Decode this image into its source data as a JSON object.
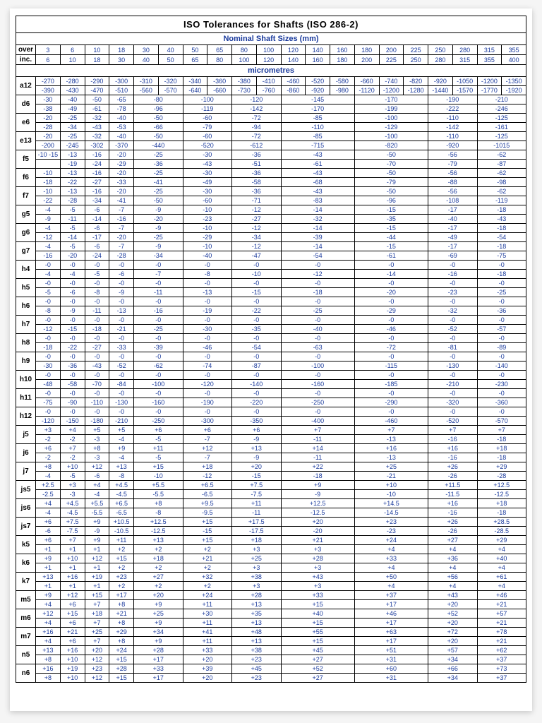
{
  "title": "ISO Tolerances for Shafts (ISO 286-2)",
  "nominal_header": "Nominal Shaft Sizes (mm)",
  "micrometres": "micrometres",
  "rowLabels": {
    "over": "over",
    "inc": "inc."
  },
  "overSizes": [
    "3",
    "6",
    "10",
    "18",
    "30",
    "40",
    "50",
    "65",
    "80",
    "100",
    "120",
    "140",
    "160",
    "180",
    "200",
    "225",
    "250",
    "280",
    "315",
    "355"
  ],
  "incSizes": [
    "6",
    "10",
    "18",
    "30",
    "40",
    "50",
    "65",
    "80",
    "100",
    "120",
    "140",
    "160",
    "180",
    "200",
    "225",
    "250",
    "280",
    "315",
    "355",
    "400"
  ],
  "colors": {
    "accent": "#1a3a9c"
  },
  "rows": [
    {
      "c": "a12",
      "spans": [
        1,
        1,
        1,
        1,
        1,
        1,
        1,
        1,
        1,
        1,
        1,
        1,
        1,
        1,
        1,
        1,
        1,
        1,
        1,
        1
      ],
      "u": [
        "-270",
        "-280",
        "-290",
        "-300",
        "-310",
        "-320",
        "-340",
        "-360",
        "-380",
        "-410",
        "-460",
        "-520",
        "-580",
        "-660",
        "-740",
        "-820",
        "-920",
        "-1050",
        "-1200",
        "-1350"
      ],
      "l": [
        "-390",
        "-430",
        "-470",
        "-510",
        "-560",
        "-570",
        "-640",
        "-660",
        "-730",
        "-760",
        "-860",
        "-920",
        "-980",
        "-1120",
        "-1200",
        "-1280",
        "-1440",
        "-1570",
        "-1770",
        "-1920"
      ]
    },
    {
      "c": "d6",
      "spans": [
        1,
        1,
        1,
        1,
        2,
        2,
        2,
        3,
        3,
        2,
        2
      ],
      "u": [
        "-30",
        "-40",
        "-50",
        "-65",
        "-80",
        "-100",
        "-120",
        "-145",
        "-170",
        "-190",
        "-210"
      ],
      "l": [
        "-38",
        "-49",
        "-61",
        "-78",
        "-96",
        "-119",
        "-142",
        "-170",
        "-199",
        "-222",
        "-246"
      ]
    },
    {
      "c": "e6",
      "spans": [
        1,
        1,
        1,
        1,
        2,
        2,
        2,
        3,
        3,
        2,
        2
      ],
      "u": [
        "-20",
        "-25",
        "-32",
        "-40",
        "-50",
        "-60",
        "-72",
        "-85",
        "-100",
        "-110",
        "-125"
      ],
      "l": [
        "-28",
        "-34",
        "-43",
        "-53",
        "-66",
        "-79",
        "-94",
        "-110",
        "-129",
        "-142",
        "-161"
      ]
    },
    {
      "c": "e13",
      "spans": [
        1,
        1,
        1,
        1,
        2,
        2,
        2,
        3,
        3,
        2,
        2
      ],
      "u": [
        "-20",
        "-25",
        "-32",
        "-40",
        "-50",
        "-60",
        "-72",
        "-85",
        "-100",
        "-110",
        "-125"
      ],
      "l": [
        "-200",
        "-245",
        "-302",
        "-370",
        "-440",
        "-520",
        "-612",
        "-715",
        "-820",
        "-920",
        "-1015"
      ]
    },
    {
      "c": "f5",
      "spans": [
        1,
        1,
        1,
        1,
        2,
        2,
        2,
        3,
        3,
        2,
        2
      ],
      "u": [
        "-10 -15",
        "-13",
        "-16",
        "-20",
        "-25",
        "-30",
        "-36",
        "-43",
        "-50",
        "-56",
        "-62"
      ],
      "l": [
        "",
        "-19",
        "-24",
        "-29",
        "-36",
        "-43",
        "-51",
        "-61",
        "-70",
        "-79",
        "-87"
      ]
    },
    {
      "c": "f6",
      "spans": [
        1,
        1,
        1,
        1,
        2,
        2,
        2,
        3,
        3,
        2,
        2
      ],
      "u": [
        "-10",
        "-13",
        "-16",
        "-20",
        "-25",
        "-30",
        "-36",
        "-43",
        "-50",
        "-56",
        "-62"
      ],
      "l": [
        "-18",
        "-22",
        "-27",
        "-33",
        "-41",
        "-49",
        "-58",
        "-68",
        "-79",
        "-88",
        "-98"
      ]
    },
    {
      "c": "f7",
      "spans": [
        1,
        1,
        1,
        1,
        2,
        2,
        2,
        3,
        3,
        2,
        2
      ],
      "u": [
        "-10",
        "-13",
        "-16",
        "-20",
        "-25",
        "-30",
        "-36",
        "-43",
        "-50",
        "-56",
        "-62"
      ],
      "l": [
        "-22",
        "-28",
        "-34",
        "-41",
        "-50",
        "-60",
        "-71",
        "-83",
        "-96",
        "-108",
        "-119"
      ]
    },
    {
      "c": "g5",
      "spans": [
        1,
        1,
        1,
        1,
        2,
        2,
        2,
        3,
        3,
        2,
        2
      ],
      "u": [
        "-4",
        "-5",
        "-6",
        "-7",
        "-9",
        "-10",
        "-12",
        "-14",
        "-15",
        "-17",
        "-18"
      ],
      "l": [
        "-9",
        "-11",
        "-14",
        "-16",
        "-20",
        "-23",
        "-27",
        "-32",
        "-35",
        "-40",
        "-43"
      ]
    },
    {
      "c": "g6",
      "spans": [
        1,
        1,
        1,
        1,
        2,
        2,
        2,
        3,
        3,
        2,
        2
      ],
      "u": [
        "-4",
        "-5",
        "-6",
        "-7",
        "-9",
        "-10",
        "-12",
        "-14",
        "-15",
        "-17",
        "-18"
      ],
      "l": [
        "-12",
        "-14",
        "-17",
        "-20",
        "-25",
        "-29",
        "-34",
        "-39",
        "-44",
        "-49",
        "-54"
      ]
    },
    {
      "c": "g7",
      "spans": [
        1,
        1,
        1,
        1,
        2,
        2,
        2,
        3,
        3,
        2,
        2
      ],
      "u": [
        "-4",
        "-5",
        "-6",
        "-7",
        "-9",
        "-10",
        "-12",
        "-14",
        "-15",
        "-17",
        "-18"
      ],
      "l": [
        "-16",
        "-20",
        "-24",
        "-28",
        "-34",
        "-40",
        "-47",
        "-54",
        "-61",
        "-69",
        "-75"
      ]
    },
    {
      "c": "h4",
      "spans": [
        1,
        1,
        1,
        1,
        2,
        2,
        2,
        3,
        3,
        2,
        2
      ],
      "u": [
        "-0",
        "-0",
        "-0",
        "-0",
        "-0",
        "-0",
        "-0",
        "-0",
        "-0",
        "-0",
        "-0"
      ],
      "l": [
        "-4",
        "-4",
        "-5",
        "-6",
        "-7",
        "-8",
        "-10",
        "-12",
        "-14",
        "-16",
        "-18"
      ]
    },
    {
      "c": "h5",
      "spans": [
        1,
        1,
        1,
        1,
        2,
        2,
        2,
        3,
        3,
        2,
        2
      ],
      "u": [
        "-0",
        "-0",
        "-0",
        "-0",
        "-0",
        "-0",
        "-0",
        "-0",
        "-0",
        "-0",
        "-0"
      ],
      "l": [
        "-5",
        "-6",
        "-8",
        "-9",
        "-11",
        "-13",
        "-15",
        "-18",
        "-20",
        "-23",
        "-25"
      ]
    },
    {
      "c": "h6",
      "spans": [
        1,
        1,
        1,
        1,
        2,
        2,
        2,
        3,
        3,
        2,
        2
      ],
      "u": [
        "-0",
        "-0",
        "-0",
        "-0",
        "-0",
        "-0",
        "-0",
        "-0",
        "-0",
        "-0",
        "-0"
      ],
      "l": [
        "-8",
        "-9",
        "-11",
        "-13",
        "-16",
        "-19",
        "-22",
        "-25",
        "-29",
        "-32",
        "-36"
      ]
    },
    {
      "c": "h7",
      "spans": [
        1,
        1,
        1,
        1,
        2,
        2,
        2,
        3,
        3,
        2,
        2
      ],
      "u": [
        "-0",
        "-0",
        "-0",
        "-0",
        "-0",
        "-0",
        "-0",
        "-0",
        "-0",
        "-0",
        "-0"
      ],
      "l": [
        "-12",
        "-15",
        "-18",
        "-21",
        "-25",
        "-30",
        "-35",
        "-40",
        "-46",
        "-52",
        "-57"
      ]
    },
    {
      "c": "h8",
      "spans": [
        1,
        1,
        1,
        1,
        2,
        2,
        2,
        3,
        3,
        2,
        2
      ],
      "u": [
        "-0",
        "-0",
        "-0",
        "-0",
        "-0",
        "-0",
        "-0",
        "-0",
        "-0",
        "-0",
        "-0"
      ],
      "l": [
        "-18",
        "-22",
        "-27",
        "-33",
        "-39",
        "-46",
        "-54",
        "-63",
        "-72",
        "-81",
        "-89"
      ]
    },
    {
      "c": "h9",
      "spans": [
        1,
        1,
        1,
        1,
        2,
        2,
        2,
        3,
        3,
        2,
        2
      ],
      "u": [
        "-0",
        "-0",
        "-0",
        "-0",
        "-0",
        "-0",
        "-0",
        "-0",
        "-0",
        "-0",
        "-0"
      ],
      "l": [
        "-30",
        "-36",
        "-43",
        "-52",
        "-62",
        "-74",
        "-87",
        "-100",
        "-115",
        "-130",
        "-140"
      ]
    },
    {
      "c": "h10",
      "spans": [
        1,
        1,
        1,
        1,
        2,
        2,
        2,
        3,
        3,
        2,
        2
      ],
      "u": [
        "-0",
        "-0",
        "-0",
        "-0",
        "-0",
        "-0",
        "-0",
        "-0",
        "-0",
        "-0",
        "-0"
      ],
      "l": [
        "-48",
        "-58",
        "-70",
        "-84",
        "-100",
        "-120",
        "-140",
        "-160",
        "-185",
        "-210",
        "-230"
      ]
    },
    {
      "c": "h11",
      "spans": [
        1,
        1,
        1,
        1,
        2,
        2,
        2,
        3,
        3,
        2,
        2
      ],
      "u": [
        "-0",
        "-0",
        "-0",
        "-0",
        "-0",
        "-0",
        "-0",
        "-0",
        "-0",
        "-0",
        "-0"
      ],
      "l": [
        "-75",
        "-90",
        "-110",
        "-130",
        "-160",
        "-190",
        "-220",
        "-250",
        "-290",
        "-320",
        "-360"
      ]
    },
    {
      "c": "h12",
      "spans": [
        1,
        1,
        1,
        1,
        2,
        2,
        2,
        3,
        3,
        2,
        2
      ],
      "u": [
        "-0",
        "-0",
        "-0",
        "-0",
        "-0",
        "-0",
        "-0",
        "-0",
        "-0",
        "-0",
        "-0"
      ],
      "l": [
        "-120",
        "-150",
        "-180",
        "-210",
        "-250",
        "-300",
        "-350",
        "-400",
        "-460",
        "-520",
        "-570"
      ]
    },
    {
      "c": "j5",
      "spans": [
        1,
        1,
        1,
        1,
        2,
        2,
        2,
        3,
        3,
        2,
        2
      ],
      "u": [
        "+3",
        "+4",
        "+5",
        "+5",
        "+6",
        "+6",
        "+6",
        "+7",
        "+7",
        "+7",
        "+7"
      ],
      "l": [
        "-2",
        "-2",
        "-3",
        "-4",
        "-5",
        "-7",
        "-9",
        "-11",
        "-13",
        "-16",
        "-18"
      ]
    },
    {
      "c": "j6",
      "spans": [
        1,
        1,
        1,
        1,
        2,
        2,
        2,
        3,
        3,
        2,
        2
      ],
      "u": [
        "+6",
        "+7",
        "+8",
        "+9",
        "+11",
        "+12",
        "+13",
        "+14",
        "+16",
        "+16",
        "+18"
      ],
      "l": [
        "-2",
        "-2",
        "-3",
        "-4",
        "-5",
        "-7",
        "-9",
        "-11",
        "-13",
        "-16",
        "-18"
      ]
    },
    {
      "c": "j7",
      "spans": [
        1,
        1,
        1,
        1,
        2,
        2,
        2,
        3,
        3,
        2,
        2
      ],
      "u": [
        "+8",
        "+10",
        "+12",
        "+13",
        "+15",
        "+18",
        "+20",
        "+22",
        "+25",
        "+26",
        "+29"
      ],
      "l": [
        "-4",
        "-5",
        "-6",
        "-8",
        "-10",
        "-12",
        "-15",
        "-18",
        "-21",
        "-26",
        "-28"
      ]
    },
    {
      "c": "js5",
      "spans": [
        1,
        1,
        1,
        1,
        2,
        2,
        2,
        3,
        3,
        2,
        2
      ],
      "u": [
        "+2.5",
        "+3",
        "+4",
        "+4.5",
        "+5.5",
        "+6.5",
        "+7.5",
        "+9",
        "+10",
        "+11.5",
        "+12.5"
      ],
      "l": [
        "-2.5",
        "-3",
        "-4",
        "-4.5",
        "-5.5",
        "-6.5",
        "-7.5",
        "-9",
        "-10",
        "-11.5",
        "-12.5"
      ]
    },
    {
      "c": "js6",
      "spans": [
        1,
        1,
        1,
        1,
        2,
        2,
        2,
        3,
        3,
        2,
        2
      ],
      "u": [
        "+4",
        "+4.5",
        "+5.5",
        "+6.5",
        "+8",
        "+9.5",
        "+11",
        "+12.5",
        "+14.5",
        "+16",
        "+18"
      ],
      "l": [
        "-4",
        "-4.5",
        "-5.5",
        "-6.5",
        "-8",
        "-9.5",
        "-11",
        "-12.5",
        "-14.5",
        "-16",
        "-18"
      ]
    },
    {
      "c": "js7",
      "spans": [
        1,
        1,
        1,
        1,
        2,
        2,
        2,
        3,
        3,
        2,
        2
      ],
      "u": [
        "+6",
        "+7.5",
        "+9",
        "+10.5",
        "+12.5",
        "+15",
        "+17.5",
        "+20",
        "+23",
        "+26",
        "+28.5"
      ],
      "l": [
        "-6",
        "-7.5",
        "-9",
        "-10.5",
        "-12.5",
        "-15",
        "-17.5",
        "-20",
        "-23",
        "-26",
        "-28.5"
      ]
    },
    {
      "c": "k5",
      "spans": [
        1,
        1,
        1,
        1,
        2,
        2,
        2,
        3,
        3,
        2,
        2
      ],
      "u": [
        "+6",
        "+7",
        "+9",
        "+11",
        "+13",
        "+15",
        "+18",
        "+21",
        "+24",
        "+27",
        "+29"
      ],
      "l": [
        "+1",
        "+1",
        "+1",
        "+2",
        "+2",
        "+2",
        "+3",
        "+3",
        "+4",
        "+4",
        "+4"
      ]
    },
    {
      "c": "k6",
      "spans": [
        1,
        1,
        1,
        1,
        2,
        2,
        2,
        3,
        3,
        2,
        2
      ],
      "u": [
        "+9",
        "+10",
        "+12",
        "+15",
        "+18",
        "+21",
        "+25",
        "+28",
        "+33",
        "+36",
        "+40"
      ],
      "l": [
        "+1",
        "+1",
        "+1",
        "+2",
        "+2",
        "+2",
        "+3",
        "+3",
        "+4",
        "+4",
        "+4"
      ]
    },
    {
      "c": "k7",
      "spans": [
        1,
        1,
        1,
        1,
        2,
        2,
        2,
        3,
        3,
        2,
        2
      ],
      "u": [
        "+13",
        "+16",
        "+19",
        "+23",
        "+27",
        "+32",
        "+38",
        "+43",
        "+50",
        "+56",
        "+61"
      ],
      "l": [
        "+1",
        "+1",
        "+1",
        "+2",
        "+2",
        "+2",
        "+3",
        "+3",
        "+4",
        "+4",
        "+4"
      ]
    },
    {
      "c": "m5",
      "spans": [
        1,
        1,
        1,
        1,
        2,
        2,
        2,
        3,
        3,
        2,
        2
      ],
      "u": [
        "+9",
        "+12",
        "+15",
        "+17",
        "+20",
        "+24",
        "+28",
        "+33",
        "+37",
        "+43",
        "+46"
      ],
      "l": [
        "+4",
        "+6",
        "+7",
        "+8",
        "+9",
        "+11",
        "+13",
        "+15",
        "+17",
        "+20",
        "+21"
      ]
    },
    {
      "c": "m6",
      "spans": [
        1,
        1,
        1,
        1,
        2,
        2,
        2,
        3,
        3,
        2,
        2
      ],
      "u": [
        "+12",
        "+15",
        "+18",
        "+21",
        "+25",
        "+30",
        "+35",
        "+40",
        "+46",
        "+52",
        "+57"
      ],
      "l": [
        "+4",
        "+6",
        "+7",
        "+8",
        "+9",
        "+11",
        "+13",
        "+15",
        "+17",
        "+20",
        "+21"
      ]
    },
    {
      "c": "m7",
      "spans": [
        1,
        1,
        1,
        1,
        2,
        2,
        2,
        3,
        3,
        2,
        2
      ],
      "u": [
        "+16",
        "+21",
        "+25",
        "+29",
        "+34",
        "+41",
        "+48",
        "+55",
        "+63",
        "+72",
        "+78"
      ],
      "l": [
        "+4",
        "+6",
        "+7",
        "+8",
        "+9",
        "+11",
        "+13",
        "+15",
        "+17",
        "+20",
        "+21"
      ]
    },
    {
      "c": "n5",
      "spans": [
        1,
        1,
        1,
        1,
        2,
        2,
        2,
        3,
        3,
        2,
        2
      ],
      "u": [
        "+13",
        "+16",
        "+20",
        "+24",
        "+28",
        "+33",
        "+38",
        "+45",
        "+51",
        "+57",
        "+62"
      ],
      "l": [
        "+8",
        "+10",
        "+12",
        "+15",
        "+17",
        "+20",
        "+23",
        "+27",
        "+31",
        "+34",
        "+37"
      ]
    },
    {
      "c": "n6",
      "spans": [
        1,
        1,
        1,
        1,
        2,
        2,
        2,
        3,
        3,
        2,
        2
      ],
      "u": [
        "+16",
        "+19",
        "+23",
        "+28",
        "+33",
        "+39",
        "+45",
        "+52",
        "+60",
        "+66",
        "+73"
      ],
      "l": [
        "+8",
        "+10",
        "+12",
        "+15",
        "+17",
        "+20",
        "+23",
        "+27",
        "+31",
        "+34",
        "+37"
      ]
    }
  ]
}
